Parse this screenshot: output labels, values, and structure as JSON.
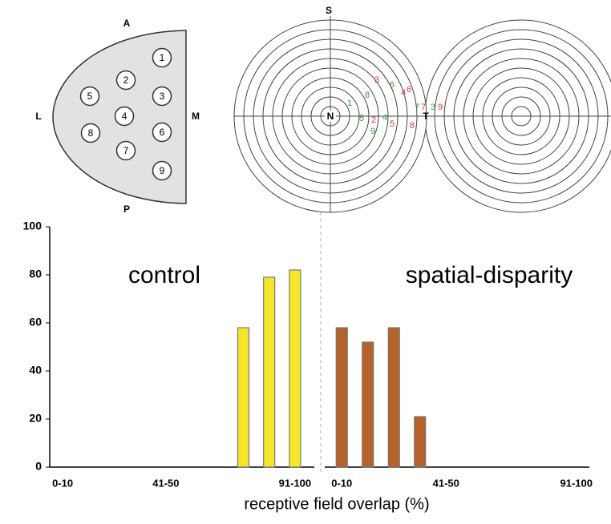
{
  "retina_map": {
    "labels": {
      "anterior": "A",
      "lateral": "L",
      "medial": "M",
      "posterior": "P"
    },
    "sites": [
      "1",
      "2",
      "3",
      "4",
      "5",
      "6",
      "7",
      "8",
      "9"
    ]
  },
  "visual_field": {
    "labels": {
      "superior": "S",
      "nasal": "N",
      "temporal": "T"
    },
    "points": [
      {
        "text": "3",
        "color": "#d03a3a"
      },
      {
        "text": "6",
        "color": "#3a9a3a"
      },
      {
        "text": "1",
        "color": "#3a9a3a"
      },
      {
        "text": "8",
        "color": "#3a9a3a"
      },
      {
        "text": "4",
        "color": "#d03a3a"
      },
      {
        "text": "6",
        "color": "#d03a3a"
      },
      {
        "text": "2",
        "color": "#d03a3a"
      },
      {
        "text": "5",
        "color": "#3a9a3a"
      },
      {
        "text": "4",
        "color": "#3a9a3a"
      },
      {
        "text": "5",
        "color": "#d03a3a"
      },
      {
        "text": "9",
        "color": "#3a9a3a"
      },
      {
        "text": "7",
        "color": "#3a9a3a"
      },
      {
        "text": "8",
        "color": "#d03a3a"
      },
      {
        "text": "7",
        "color": "#d03a3a"
      },
      {
        "text": "3",
        "color": "#3a9a3a"
      },
      {
        "text": "9",
        "color": "#d03a3a"
      }
    ]
  },
  "chart_data": [
    {
      "type": "bar",
      "title": "control",
      "xlabel": "receptive field overlap (%)",
      "categories": [
        "0-10",
        null,
        null,
        null,
        "41-50",
        null,
        null,
        null,
        null,
        "91-100"
      ],
      "values": [
        null,
        null,
        null,
        null,
        null,
        null,
        null,
        58,
        79,
        82
      ],
      "color": "#f5e62a",
      "ylim": [
        0,
        100
      ],
      "yticks": [
        0,
        20,
        40,
        60,
        80,
        100
      ]
    },
    {
      "type": "bar",
      "title": "spatial-disparity",
      "categories": [
        "0-10",
        null,
        null,
        null,
        "41-50",
        null,
        null,
        null,
        null,
        "91-100"
      ],
      "values": [
        58,
        52,
        58,
        21,
        null,
        null,
        null,
        null,
        null,
        null
      ],
      "color": "#b5632a",
      "ylim": [
        0,
        100
      ]
    }
  ]
}
